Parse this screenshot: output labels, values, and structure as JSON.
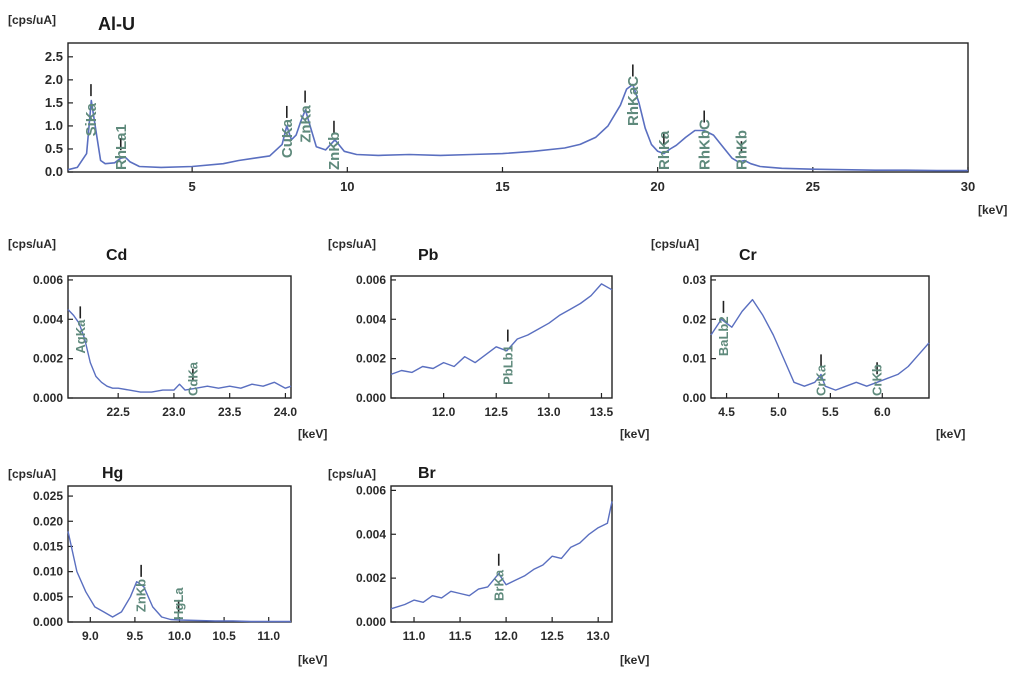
{
  "colors": {
    "trace": "#5a6fc0",
    "peak_label": "#5f8a7c",
    "frame": "#222222",
    "text": "#2a2a2a"
  },
  "chart_data": [
    {
      "id": "al-u",
      "type": "line",
      "title": "Al-U",
      "ylabel": "[cps/uA]",
      "xlabel": "[keV]",
      "xlim": [
        1.0,
        30.0
      ],
      "ylim": [
        0.0,
        2.8
      ],
      "xticks": [
        5,
        10,
        15,
        20,
        25,
        30
      ],
      "xtick_labels": [
        "5",
        "10",
        "15",
        "20",
        "25",
        "30"
      ],
      "yticks": [
        0.0,
        0.5,
        1.0,
        1.5,
        2.0,
        2.5
      ],
      "ytick_labels": [
        "0.0",
        "0.5",
        "1.0",
        "1.5",
        "2.0",
        "2.5"
      ],
      "series": [
        {
          "x": [
            1.0,
            1.3,
            1.6,
            1.75,
            1.9,
            2.05,
            2.2,
            2.5,
            2.7,
            2.85,
            3.0,
            3.3,
            4.0,
            5.0,
            6.0,
            6.5,
            7.0,
            7.5,
            7.9,
            8.05,
            8.2,
            8.35,
            8.5,
            8.65,
            8.8,
            9.0,
            9.3,
            9.6,
            9.9,
            10.3,
            11.0,
            12.0,
            13.0,
            14.0,
            15.0,
            16.0,
            17.0,
            17.5,
            18.0,
            18.4,
            18.8,
            19.0,
            19.2,
            19.4,
            19.6,
            19.8,
            20.0,
            20.2,
            20.4,
            20.6,
            20.9,
            21.2,
            21.5,
            21.8,
            22.1,
            22.4,
            22.6,
            22.8,
            23.0,
            23.3,
            24.0,
            25.0,
            26.0,
            27.0,
            28.0,
            29.0,
            30.0
          ],
          "y": [
            0.05,
            0.1,
            0.4,
            1.55,
            0.9,
            0.25,
            0.18,
            0.2,
            0.3,
            0.32,
            0.22,
            0.12,
            0.1,
            0.12,
            0.18,
            0.25,
            0.3,
            0.35,
            0.6,
            1.0,
            0.7,
            0.8,
            1.1,
            1.35,
            1.0,
            0.55,
            0.48,
            0.7,
            0.45,
            0.38,
            0.36,
            0.38,
            0.36,
            0.38,
            0.4,
            0.45,
            0.52,
            0.6,
            0.75,
            1.0,
            1.45,
            1.8,
            1.9,
            1.5,
            0.95,
            0.6,
            0.45,
            0.4,
            0.5,
            0.58,
            0.75,
            0.9,
            0.9,
            0.8,
            0.55,
            0.3,
            0.22,
            0.25,
            0.18,
            0.12,
            0.08,
            0.06,
            0.05,
            0.04,
            0.04,
            0.03,
            0.03
          ]
        }
      ],
      "peaks": [
        {
          "label": "SiKa",
          "x": 1.74
        },
        {
          "label": "RhLa1",
          "x": 2.7
        },
        {
          "label": "CuKa",
          "x": 8.05
        },
        {
          "label": "ZnKa",
          "x": 8.64
        },
        {
          "label": "ZnKb",
          "x": 9.57
        },
        {
          "label": "RhKaC",
          "x": 19.2
        },
        {
          "label": "RhKa",
          "x": 20.2
        },
        {
          "label": "RhKbC",
          "x": 21.5
        },
        {
          "label": "RhKb",
          "x": 22.7
        }
      ]
    },
    {
      "id": "cd",
      "type": "line",
      "title": "Cd",
      "ylabel": "[cps/uA]",
      "xlabel": "[keV]",
      "xlim": [
        22.05,
        24.05
      ],
      "ylim": [
        0.0,
        0.0062
      ],
      "xticks": [
        22.5,
        23.0,
        23.5,
        24.0
      ],
      "xtick_labels": [
        "22.5",
        "23.0",
        "23.5",
        "24.0"
      ],
      "yticks": [
        0.0,
        0.002,
        0.004,
        0.006
      ],
      "ytick_labels": [
        "0.000",
        "0.002",
        "0.004",
        "0.006"
      ],
      "series": [
        {
          "x": [
            22.05,
            22.1,
            22.15,
            22.2,
            22.25,
            22.3,
            22.35,
            22.4,
            22.45,
            22.5,
            22.6,
            22.7,
            22.8,
            22.9,
            23.0,
            23.05,
            23.1,
            23.2,
            23.3,
            23.4,
            23.5,
            23.6,
            23.7,
            23.8,
            23.9,
            24.0,
            24.05
          ],
          "y": [
            0.0045,
            0.0042,
            0.0038,
            0.003,
            0.0018,
            0.0011,
            0.0008,
            0.0006,
            0.0005,
            0.0005,
            0.0004,
            0.0003,
            0.0003,
            0.0004,
            0.0004,
            0.0007,
            0.0004,
            0.0005,
            0.0006,
            0.0005,
            0.0006,
            0.0005,
            0.0007,
            0.0006,
            0.0008,
            0.0005,
            0.0006
          ]
        }
      ],
      "peaks": [
        {
          "label": "AgKa",
          "x": 22.16
        },
        {
          "label": "CdKa",
          "x": 23.17
        }
      ]
    },
    {
      "id": "pb",
      "type": "line",
      "title": "Pb",
      "ylabel": "[cps/uA]",
      "xlabel": "[keV]",
      "xlim": [
        11.5,
        13.6
      ],
      "ylim": [
        0.0,
        0.0062
      ],
      "xticks": [
        12.0,
        12.5,
        13.0,
        13.5
      ],
      "xtick_labels": [
        "12.0",
        "12.5",
        "13.0",
        "13.5"
      ],
      "yticks": [
        0.0,
        0.002,
        0.004,
        0.006
      ],
      "ytick_labels": [
        "0.000",
        "0.002",
        "0.004",
        "0.006"
      ],
      "series": [
        {
          "x": [
            11.5,
            11.6,
            11.7,
            11.8,
            11.9,
            12.0,
            12.1,
            12.2,
            12.3,
            12.4,
            12.5,
            12.6,
            12.7,
            12.8,
            12.9,
            13.0,
            13.1,
            13.2,
            13.3,
            13.4,
            13.5,
            13.6
          ],
          "y": [
            0.0012,
            0.0014,
            0.0013,
            0.0016,
            0.0015,
            0.0018,
            0.0016,
            0.0021,
            0.0018,
            0.0022,
            0.0026,
            0.0024,
            0.003,
            0.0032,
            0.0035,
            0.0038,
            0.0042,
            0.0045,
            0.0048,
            0.0052,
            0.0058,
            0.0055
          ]
        }
      ],
      "peaks": [
        {
          "label": "PbLb1",
          "x": 12.61
        }
      ]
    },
    {
      "id": "cr",
      "type": "line",
      "title": "Cr",
      "ylabel": "[cps/uA]",
      "xlabel": "[keV]",
      "xlim": [
        4.35,
        6.45
      ],
      "ylim": [
        0.0,
        0.031
      ],
      "xticks": [
        4.5,
        5.0,
        5.5,
        6.0
      ],
      "xtick_labels": [
        "4.5",
        "5.0",
        "5.5",
        "6.0"
      ],
      "yticks": [
        0.0,
        0.01,
        0.02,
        0.03
      ],
      "ytick_labels": [
        "0.00",
        "0.01",
        "0.02",
        "0.03"
      ],
      "series": [
        {
          "x": [
            4.35,
            4.45,
            4.55,
            4.65,
            4.75,
            4.85,
            4.95,
            5.05,
            5.15,
            5.25,
            5.35,
            5.41,
            5.45,
            5.55,
            5.65,
            5.75,
            5.85,
            5.95,
            6.05,
            6.15,
            6.25,
            6.35,
            6.45
          ],
          "y": [
            0.016,
            0.02,
            0.018,
            0.022,
            0.025,
            0.021,
            0.016,
            0.01,
            0.004,
            0.003,
            0.004,
            0.006,
            0.003,
            0.002,
            0.003,
            0.004,
            0.003,
            0.004,
            0.005,
            0.006,
            0.008,
            0.011,
            0.014
          ]
        }
      ],
      "peaks": [
        {
          "label": "BaLb2",
          "x": 4.47
        },
        {
          "label": "CrKa",
          "x": 5.41
        },
        {
          "label": "CrKb",
          "x": 5.95
        }
      ]
    },
    {
      "id": "hg",
      "type": "line",
      "title": "Hg",
      "ylabel": "[cps/uA]",
      "xlabel": "[keV]",
      "xlim": [
        8.75,
        11.25
      ],
      "ylim": [
        0.0,
        0.027
      ],
      "xticks": [
        9.0,
        9.5,
        10.0,
        10.5,
        11.0
      ],
      "xtick_labels": [
        "9.0",
        "9.5",
        "10.0",
        "10.5",
        "11.0"
      ],
      "yticks": [
        0.0,
        0.005,
        0.01,
        0.015,
        0.02,
        0.025
      ],
      "ytick_labels": [
        "0.000",
        "0.005",
        "0.010",
        "0.015",
        "0.020",
        "0.025"
      ],
      "series": [
        {
          "x": [
            8.75,
            8.85,
            8.95,
            9.05,
            9.15,
            9.25,
            9.35,
            9.45,
            9.52,
            9.6,
            9.7,
            9.8,
            9.9,
            10.0,
            10.2,
            10.4,
            10.6,
            10.8,
            11.0,
            11.25
          ],
          "y": [
            0.018,
            0.01,
            0.006,
            0.003,
            0.002,
            0.001,
            0.002,
            0.005,
            0.008,
            0.007,
            0.003,
            0.001,
            0.0005,
            0.0004,
            0.0003,
            0.0002,
            0.0002,
            0.0001,
            0.0001,
            0.0001
          ]
        }
      ],
      "peaks": [
        {
          "label": "ZnKb",
          "x": 9.57
        },
        {
          "label": "HgLa",
          "x": 9.99
        }
      ]
    },
    {
      "id": "br",
      "type": "line",
      "title": "Br",
      "ylabel": "[cps/uA]",
      "xlabel": "[keV]",
      "xlim": [
        10.75,
        13.15
      ],
      "ylim": [
        0.0,
        0.0062
      ],
      "xticks": [
        11.0,
        11.5,
        12.0,
        12.5,
        13.0
      ],
      "xtick_labels": [
        "11.0",
        "11.5",
        "12.0",
        "12.5",
        "13.0"
      ],
      "yticks": [
        0.0,
        0.002,
        0.004,
        0.006
      ],
      "ytick_labels": [
        "0.000",
        "0.002",
        "0.004",
        "0.006"
      ],
      "series": [
        {
          "x": [
            10.75,
            10.9,
            11.0,
            11.1,
            11.2,
            11.3,
            11.4,
            11.5,
            11.6,
            11.7,
            11.8,
            11.92,
            12.0,
            12.1,
            12.2,
            12.3,
            12.4,
            12.5,
            12.6,
            12.7,
            12.8,
            12.9,
            13.0,
            13.1,
            13.15
          ],
          "y": [
            0.0006,
            0.0008,
            0.001,
            0.0009,
            0.0012,
            0.0011,
            0.0014,
            0.0013,
            0.0012,
            0.0015,
            0.0016,
            0.0022,
            0.0017,
            0.0019,
            0.0021,
            0.0024,
            0.0026,
            0.003,
            0.0029,
            0.0034,
            0.0036,
            0.004,
            0.0043,
            0.0045,
            0.0055
          ]
        }
      ],
      "peaks": [
        {
          "label": "BrKa",
          "x": 11.92
        }
      ]
    }
  ]
}
